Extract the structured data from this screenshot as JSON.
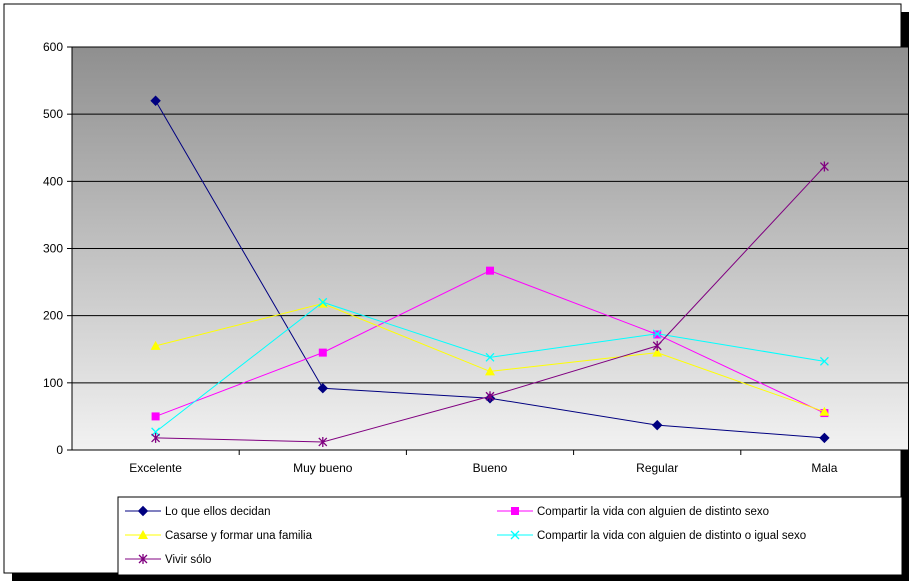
{
  "chart_data": {
    "type": "line",
    "title": "",
    "xlabel": "",
    "ylabel": "",
    "categories": [
      "Excelente",
      "Muy bueno",
      "Bueno",
      "Regular",
      "Mala"
    ],
    "ylim": [
      0,
      600
    ],
    "yticks": [
      "0",
      "100",
      "200",
      "300",
      "400",
      "500",
      "600"
    ],
    "grid": true,
    "legend_position": "bottom",
    "plot_background": "#c0c0c0",
    "series": [
      {
        "name": "Lo que ellos decidan",
        "values": [
          520,
          92,
          77,
          37,
          18
        ],
        "color": "#000080",
        "marker": "diamond"
      },
      {
        "name": "Compartir la vida con alguien de distinto sexo",
        "values": [
          50,
          145,
          267,
          172,
          55
        ],
        "color": "#ff00ff",
        "marker": "square"
      },
      {
        "name": "Casarse y formar una familia",
        "values": [
          155,
          218,
          117,
          145,
          57
        ],
        "color": "#ffff00",
        "marker": "triangle"
      },
      {
        "name": "Compartir la vida con alguien de distinto o igual sexo",
        "values": [
          27,
          220,
          138,
          173,
          132
        ],
        "color": "#00ffff",
        "marker": "x"
      },
      {
        "name": "Vivir sólo",
        "values": [
          18,
          12,
          80,
          155,
          422
        ],
        "color": "#800080",
        "marker": "star"
      }
    ]
  }
}
